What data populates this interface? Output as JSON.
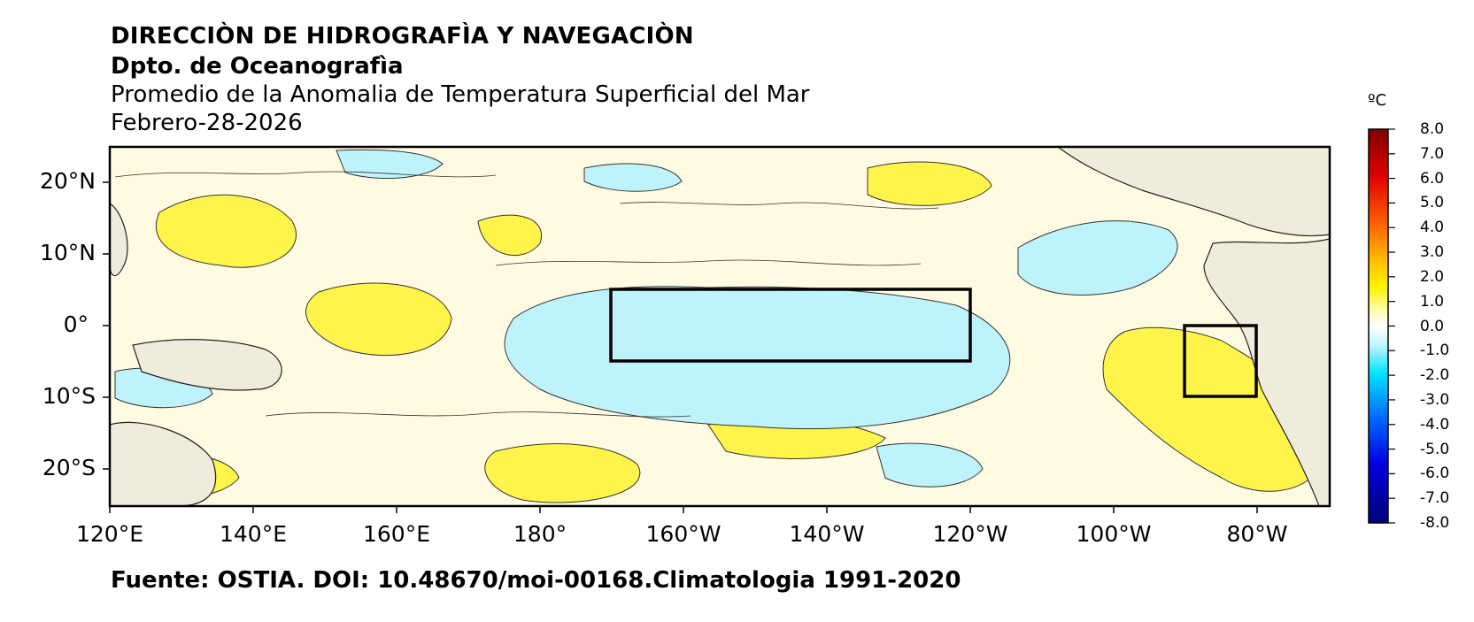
{
  "header": {
    "line1": "DIRECCIÒN DE HIDROGRAFÌA Y NAVEGACIÒN",
    "line2": "Dpto. de Oceanografìa",
    "line3": "Promedio de la Anomalia de Temperatura Superficial del Mar",
    "line4": "Febrero-28-2026"
  },
  "footer": {
    "source": "Fuente: OSTIA. DOI: 10.48670/moi-00168.Climatologia 1991-2020"
  },
  "map": {
    "lat_labels": [
      "20°N",
      "10°N",
      "0°",
      "10°S",
      "20°S"
    ],
    "lon_labels": [
      "120°E",
      "140°E",
      "160°E",
      "180°",
      "160°W",
      "140°W",
      "120°W",
      "100°W",
      "80°W"
    ],
    "extent": {
      "lon_min": 120,
      "lon_max": 290,
      "lat_min": -25,
      "lat_max": 25
    },
    "boxes": [
      {
        "name": "nino-3.4",
        "lon_range": [
          190,
          240
        ],
        "lat_range": [
          -5,
          5
        ]
      },
      {
        "name": "nino-1+2",
        "lon_range": [
          270,
          280
        ],
        "lat_range": [
          -10,
          0
        ]
      }
    ],
    "colors": {
      "land": "#efecdc",
      "ocean_neutral": "#fffbe3",
      "warm": "#fff54a",
      "cool": "#bff3fb"
    }
  },
  "colorbar": {
    "unit": "ºC",
    "ticks": [
      "8.0",
      "7.0",
      "6.0",
      "5.0",
      "4.0",
      "3.0",
      "2.0",
      "1.0",
      "0.0",
      "-1.0",
      "-2.0",
      "-3.0",
      "-4.0",
      "-5.0",
      "-6.0",
      "-7.0",
      "-8.0"
    ]
  }
}
